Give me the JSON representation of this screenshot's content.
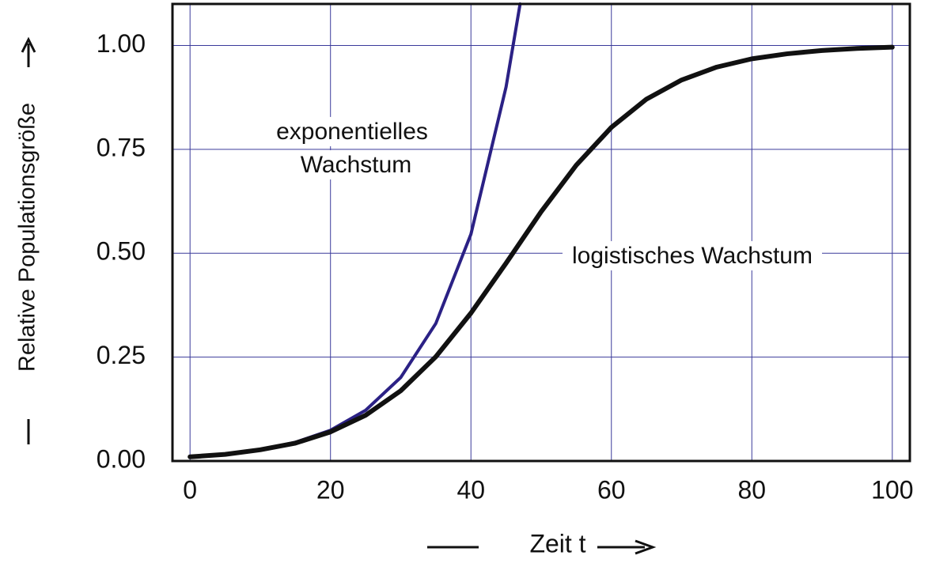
{
  "chart_data": {
    "type": "line",
    "xlabel": "Zeit  t",
    "ylabel": "Relative Populationsgröße",
    "annotations": [
      "exponentielles",
      "Wachstum",
      "logistisches Wachstum"
    ],
    "xlim": [
      -2.5,
      102.5
    ],
    "ylim": [
      0,
      1.1
    ],
    "xticks": [
      0,
      20,
      40,
      60,
      80,
      100
    ],
    "yticks": [
      {
        "value": 0,
        "label": "0.00"
      },
      {
        "value": 0.25,
        "label": "0.25"
      },
      {
        "value": 0.5,
        "label": "0.50"
      },
      {
        "value": 0.75,
        "label": "0.75"
      },
      {
        "value": 1,
        "label": "1.00"
      }
    ],
    "grid": true,
    "series": [
      {
        "name": "exponentielles Wachstum",
        "color": "#2b2185",
        "x": [
          0,
          5,
          10,
          15,
          20,
          25,
          30,
          35,
          40,
          45,
          47
        ],
        "values": [
          0.01,
          0.016,
          0.027,
          0.045,
          0.074,
          0.122,
          0.201,
          0.331,
          0.546,
          0.9,
          1.1
        ]
      },
      {
        "name": "logistisches Wachstum",
        "color": "#111111",
        "x": [
          0,
          5,
          10,
          15,
          20,
          25,
          30,
          35,
          40,
          45,
          50,
          55,
          60,
          65,
          70,
          75,
          80,
          85,
          90,
          95,
          100
        ],
        "values": [
          0.01,
          0.016,
          0.027,
          0.043,
          0.07,
          0.11,
          0.169,
          0.251,
          0.356,
          0.476,
          0.6,
          0.712,
          0.803,
          0.871,
          0.917,
          0.948,
          0.968,
          0.98,
          0.988,
          0.993,
          0.996
        ]
      }
    ]
  }
}
